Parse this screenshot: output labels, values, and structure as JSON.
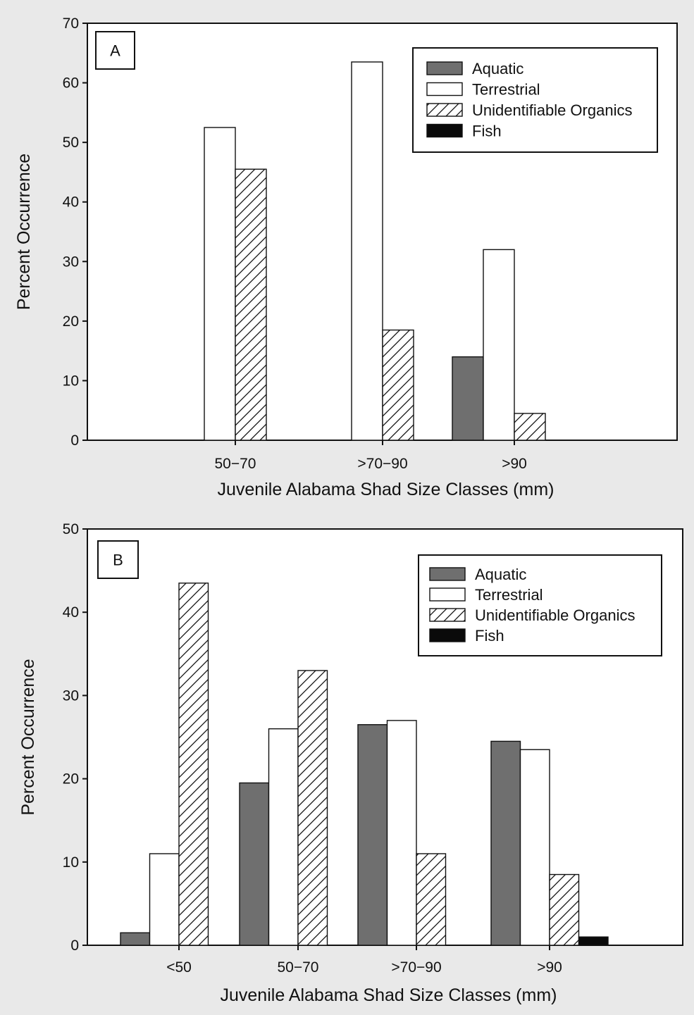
{
  "colors": {
    "background": "#e9e9e9",
    "plot_background": "#ffffff",
    "aquatic": "#6f6f6f",
    "terrestrial": "#ffffff",
    "unidentifiable_organics": "hatched",
    "fish": "#0a0a0a",
    "axis": "#111111"
  },
  "chart_data": [
    {
      "type": "bar",
      "panel_label": "A",
      "categories": [
        "50−70",
        ">70−90",
        ">90"
      ],
      "series": [
        {
          "name": "Aquatic",
          "values": [
            0,
            0,
            14
          ]
        },
        {
          "name": "Terrestrial",
          "values": [
            52.5,
            63.5,
            32
          ]
        },
        {
          "name": "Unidentifiable Organics",
          "values": [
            45.5,
            18.5,
            4.5
          ]
        },
        {
          "name": "Fish",
          "values": [
            0,
            0,
            0
          ]
        }
      ],
      "title": "",
      "xlabel": "Juvenile Alabama Shad Size Classes (mm)",
      "ylabel": "Percent Occurrence",
      "ylim": [
        0,
        70
      ],
      "yticks": [
        "0",
        "10",
        "20",
        "30",
        "40",
        "50",
        "60",
        "70"
      ],
      "grid": false,
      "legend": {
        "placement": "top-right",
        "entries": [
          "Aquatic",
          "Terrestrial",
          "Unidentifiable Organics",
          "Fish"
        ]
      }
    },
    {
      "type": "bar",
      "panel_label": "B",
      "categories": [
        "<50",
        "50−70",
        ">70−90",
        ">90"
      ],
      "series": [
        {
          "name": "Aquatic",
          "values": [
            1.5,
            19.5,
            26.5,
            24.5
          ]
        },
        {
          "name": "Terrestrial",
          "values": [
            11,
            26,
            27,
            23.5
          ]
        },
        {
          "name": "Unidentifiable Organics",
          "values": [
            43.5,
            33,
            11,
            8.5
          ]
        },
        {
          "name": "Fish",
          "values": [
            0,
            0,
            0,
            1
          ]
        }
      ],
      "title": "",
      "xlabel": "Juvenile Alabama Shad Size Classes (mm)",
      "ylabel": "Percent Occurrence",
      "ylim": [
        0,
        50
      ],
      "yticks": [
        "0",
        "10",
        "20",
        "30",
        "40",
        "50"
      ],
      "grid": false,
      "legend": {
        "placement": "top-right",
        "entries": [
          "Aquatic",
          "Terrestrial",
          "Unidentifiable Organics",
          "Fish"
        ]
      }
    }
  ]
}
